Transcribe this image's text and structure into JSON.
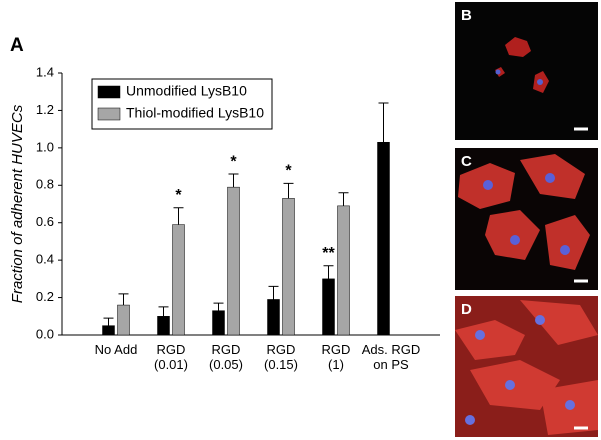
{
  "panel_label": "A",
  "chart_data": {
    "type": "bar",
    "ylabel": "Fraction of adherent HUVECs",
    "categories": [
      "No Add",
      "RGD\n(0.01)",
      "RGD\n(0.05)",
      "RGD\n(0.15)",
      "RGD\n(1)",
      "Ads. RGD\non PS"
    ],
    "series": [
      {
        "name": "Unmodified LysB10",
        "color": "#000000",
        "values": [
          0.05,
          0.1,
          0.13,
          0.19,
          0.3,
          1.03
        ],
        "errors": [
          0.04,
          0.05,
          0.04,
          0.07,
          0.07,
          0.21
        ],
        "significance": [
          null,
          null,
          null,
          null,
          "**",
          null
        ]
      },
      {
        "name": "Thiol-modified LysB10",
        "color": "#a6a6a6",
        "values": [
          0.16,
          0.59,
          0.79,
          0.73,
          0.69,
          null
        ],
        "errors": [
          0.06,
          0.09,
          0.07,
          0.08,
          0.07,
          null
        ],
        "significance": [
          null,
          "*",
          "*",
          "*",
          null,
          null
        ]
      }
    ],
    "ylim": [
      0,
      1.4
    ],
    "yticks": [
      {
        "value": 0,
        "label": "0.0"
      },
      0.2,
      0.4,
      0.6,
      0.8,
      {
        "value": 1,
        "label": "1.0"
      },
      1.2,
      1.4
    ],
    "legend": "upper-left"
  },
  "images": [
    {
      "label": "B"
    },
    {
      "label": "C"
    },
    {
      "label": "D"
    }
  ]
}
